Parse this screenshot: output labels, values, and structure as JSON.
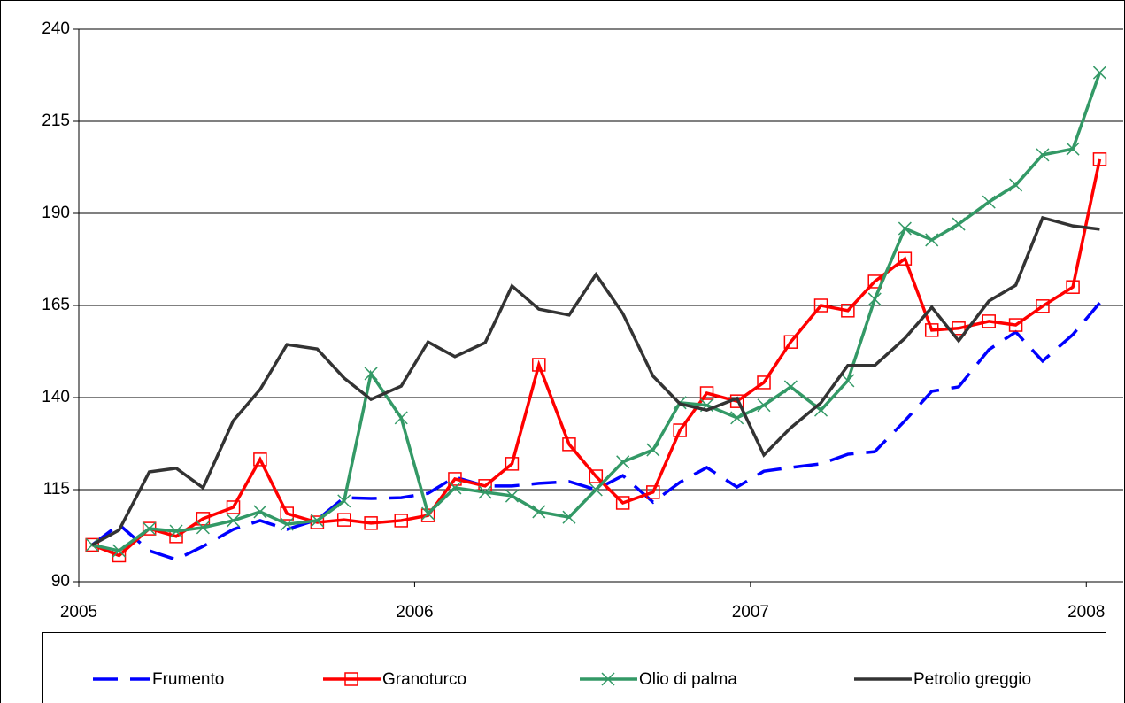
{
  "chart_data": {
    "type": "line",
    "x": [
      2005.04,
      2005.12,
      2005.21,
      2005.29,
      2005.37,
      2005.46,
      2005.54,
      2005.62,
      2005.71,
      2005.79,
      2005.87,
      2005.96,
      2006.04,
      2006.12,
      2006.21,
      2006.29,
      2006.37,
      2006.46,
      2006.54,
      2006.62,
      2006.71,
      2006.79,
      2006.87,
      2006.96,
      2007.04,
      2007.12,
      2007.21,
      2007.29,
      2007.37,
      2007.46,
      2007.54,
      2007.62,
      2007.71,
      2007.79,
      2007.87,
      2007.96,
      2008.04
    ],
    "series": [
      {
        "name": "Frumento",
        "color": "#0000ff",
        "dash": true,
        "marker": "none",
        "values": [
          100,
          105.5,
          98.4,
          96,
          99.6,
          104.2,
          106.6,
          104.2,
          106.8,
          112.8,
          112.6,
          112.8,
          114,
          118.4,
          116,
          116,
          116.7,
          117.2,
          115,
          118.8,
          111.6,
          117,
          121,
          115.7,
          120,
          121,
          122,
          124.6,
          125.3,
          133.7,
          141.7,
          142.9,
          153,
          157.8,
          149.9,
          157.1,
          165.7
        ]
      },
      {
        "name": "Granoturco",
        "color": "#ff0000",
        "dash": false,
        "marker": "square",
        "values": [
          100,
          97.1,
          104.4,
          102.3,
          107.1,
          110.2,
          123.2,
          108.5,
          106.1,
          106.8,
          105.9,
          106.6,
          108,
          117.9,
          116,
          122,
          148.9,
          127.3,
          118.6,
          111.4,
          114.3,
          131.1,
          141.2,
          139,
          144.1,
          155.1,
          165,
          163.6,
          171.5,
          177.7,
          158.3,
          158.8,
          160.7,
          159.7,
          164.8,
          170,
          204.7
        ]
      },
      {
        "name": "Olio di palma",
        "color": "#339966",
        "dash": false,
        "marker": "x",
        "values": [
          100,
          98.4,
          104.4,
          103.7,
          104.7,
          106.6,
          109,
          105.6,
          106.6,
          111.9,
          146.5,
          134.5,
          108.5,
          115.5,
          114.3,
          113.3,
          109,
          107.5,
          115,
          122.5,
          125.8,
          138.6,
          137.9,
          134.5,
          137.9,
          142.9,
          136.6,
          144.6,
          166.7,
          185.9,
          182.8,
          187.1,
          193.1,
          197.7,
          205.9,
          207.5,
          228.2
        ]
      },
      {
        "name": "Petrolio greggio",
        "color": "#333333",
        "dash": false,
        "marker": "none",
        "values": [
          100,
          104,
          119.8,
          120.8,
          115.5,
          133.7,
          142.2,
          154.4,
          153.2,
          145.3,
          139.5,
          143.1,
          155.1,
          151.1,
          154.9,
          170.3,
          164,
          162.4,
          173.4,
          162.8,
          145.8,
          138.3,
          136.6,
          139.8,
          124.4,
          131.8,
          138.6,
          148.7,
          148.7,
          156.1,
          164.5,
          155.4,
          166.2,
          170.5,
          188.8,
          186.6,
          185.7
        ]
      }
    ],
    "xlim": [
      2005,
      2008.11
    ],
    "xticks": [
      2005,
      2006,
      2007,
      2008
    ],
    "ylim": [
      90,
      240
    ],
    "yticks": [
      90,
      115,
      140,
      165,
      190,
      215,
      240
    ],
    "grid": true,
    "legend": "bottom"
  }
}
